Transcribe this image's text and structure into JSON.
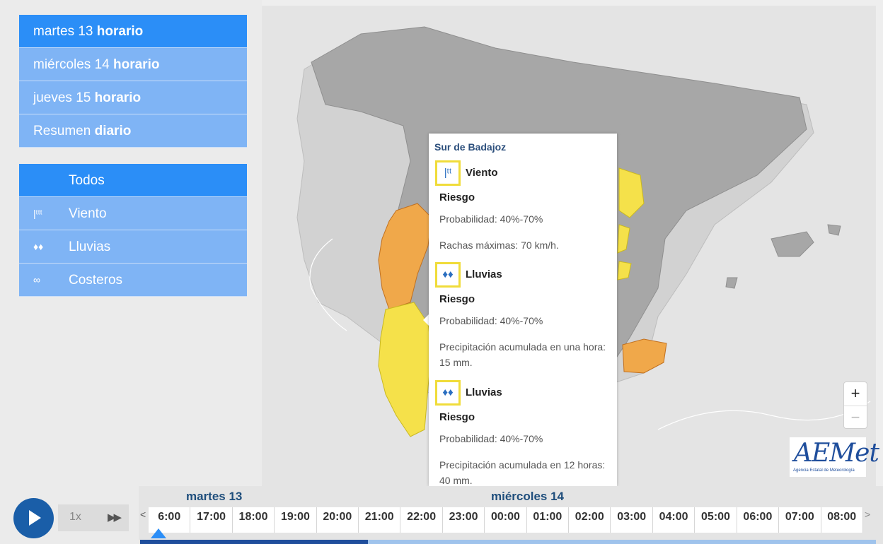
{
  "days_menu": [
    {
      "day": "martes 13",
      "mode": "horario",
      "active": true
    },
    {
      "day": "miércoles 14",
      "mode": "horario",
      "active": false
    },
    {
      "day": "jueves 15",
      "mode": "horario",
      "active": false
    },
    {
      "day": "Resumen",
      "mode": "diario",
      "active": false
    }
  ],
  "filters": [
    {
      "label": "Todos",
      "icon": "",
      "active": true
    },
    {
      "label": "Viento",
      "icon": "wind-icon",
      "active": false
    },
    {
      "label": "Lluvias",
      "icon": "rain-icon",
      "active": false
    },
    {
      "label": "Costeros",
      "icon": "coastal-icon",
      "active": false
    }
  ],
  "popup": {
    "title": "Sur de Badajoz",
    "warnings": [
      {
        "type": "Viento",
        "icon": "wind-icon",
        "risk": "Riesgo",
        "probability": "Probabilidad: 40%-70%",
        "detail": "Rachas máximas: 70 km/h."
      },
      {
        "type": "Lluvias",
        "icon": "rain-icon",
        "risk": "Riesgo",
        "probability": "Probabilidad: 40%-70%",
        "detail": "Precipitación acumulada en una hora: 15 mm."
      },
      {
        "type": "Lluvias",
        "icon": "rain-icon",
        "risk": "Riesgo",
        "probability": "Probabilidad: 40%-70%",
        "detail": "Precipitación acumulada en 12 horas: 40 mm."
      }
    ]
  },
  "zoom": {
    "in": "+",
    "out": "−"
  },
  "logo": {
    "text": "AEMet",
    "subtitle": "Agencia Estatal de Meteorología"
  },
  "player": {
    "speed": "1x",
    "fast_forward": "▶▶"
  },
  "timeline": {
    "days": [
      "martes 13",
      "miércoles 14"
    ],
    "hours": [
      "6:00",
      "17:00",
      "18:00",
      "19:00",
      "20:00",
      "21:00",
      "22:00",
      "23:00",
      "00:00",
      "01:00",
      "02:00",
      "03:00",
      "04:00",
      "05:00",
      "06:00",
      "07:00",
      "08:00"
    ],
    "progress_percent": 31
  },
  "colors": {
    "active": "#2b8ef7",
    "menu": "#7fb4f5",
    "yellow": "#f5e14a",
    "orange": "#f0a84a",
    "accent": "#1a5ea8"
  }
}
